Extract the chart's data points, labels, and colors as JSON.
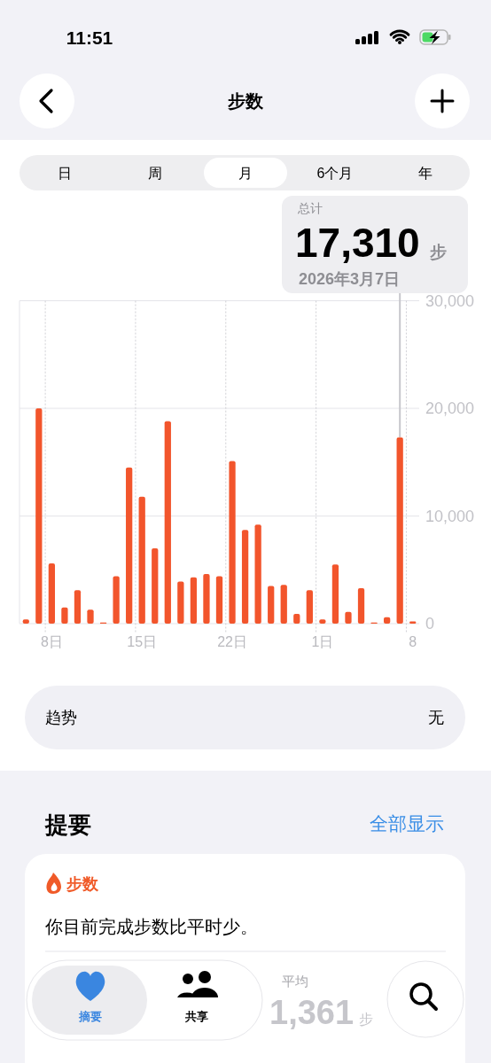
{
  "chart_data": {
    "type": "bar",
    "title": "步数",
    "x": [
      "2026-02-06",
      "2026-02-07",
      "2026-02-08",
      "2026-02-09",
      "2026-02-10",
      "2026-02-11",
      "2026-02-12",
      "2026-02-13",
      "2026-02-14",
      "2026-02-15",
      "2026-02-16",
      "2026-02-17",
      "2026-02-18",
      "2026-02-19",
      "2026-02-20",
      "2026-02-21",
      "2026-02-22",
      "2026-02-23",
      "2026-02-24",
      "2026-02-25",
      "2026-02-26",
      "2026-02-27",
      "2026-02-28",
      "2026-03-01",
      "2026-03-02",
      "2026-03-03",
      "2026-03-04",
      "2026-03-05",
      "2026-03-06",
      "2026-03-07",
      "2026-03-08"
    ],
    "values": [
      400,
      20000,
      5600,
      1500,
      3100,
      1300,
      100,
      4400,
      14500,
      11800,
      7000,
      18800,
      3900,
      4300,
      4600,
      4400,
      15100,
      8700,
      9200,
      3500,
      3600,
      900,
      3100,
      400,
      5500,
      1100,
      3300,
      100,
      600,
      17310,
      200
    ],
    "color": "#f2552c",
    "xlim": [
      "2026-02-05T12:00",
      "2026-03-08T12:00"
    ],
    "xticks": [
      {
        "value": "2026-02-08",
        "label": "8日"
      },
      {
        "value": "2026-02-15",
        "label": "15日"
      },
      {
        "value": "2026-02-22",
        "label": "22日"
      },
      {
        "value": "2026-03-01",
        "label": "1日"
      },
      {
        "value": "2026-03-08",
        "label": "8"
      }
    ],
    "ylim": [
      0,
      30000
    ],
    "yticks": [
      0,
      {
        "value": 10000,
        "label": "10,000"
      },
      {
        "value": 20000,
        "label": "20,000"
      },
      {
        "value": 30000,
        "label": "30,000"
      }
    ],
    "grid": true,
    "annotations": [
      "11:51",
      "日",
      "周",
      "月",
      "6个月",
      "年",
      "总计",
      "17,310",
      "步",
      {
        "text": "2026年3月7日",
        "x": "2026-03-07",
        "y": 17310
      },
      "趋势",
      "无",
      "提要",
      "全部显示",
      "步数",
      "你目前完成步数比平时少。",
      "平均",
      "1,361",
      "步",
      "摘要",
      "共享"
    ]
  }
}
